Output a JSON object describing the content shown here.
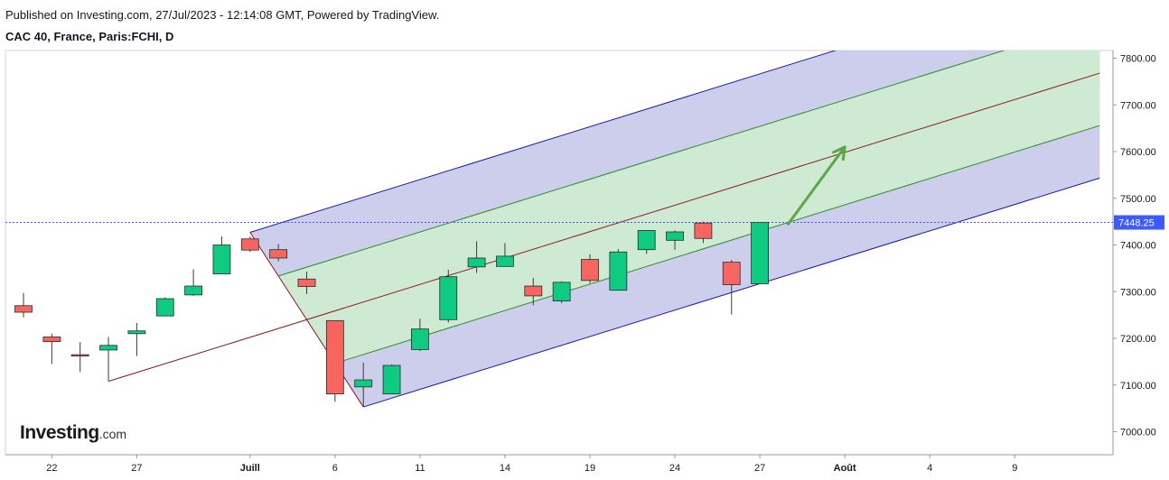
{
  "header": {
    "published": "Published on Investing.com, 27/Jul/2023 - 12:14:08 GMT, Powered by TradingView.",
    "symbol": "CAC 40, France, Paris:FCHI, D"
  },
  "logo": {
    "brand": "Investing",
    "suffix": ".com"
  },
  "colors": {
    "up": "#0ecb81",
    "down": "#f6655f",
    "outer_band": "#c7c9ea",
    "inner_band": "#cdebd2",
    "median_line": "#8b1a1a",
    "inner_line": "#2e8b2e",
    "outer_line": "#1a1aa0",
    "price_line": "#3d5afe",
    "arrow": "#5aa84a"
  },
  "chart_data": {
    "type": "candlestick",
    "ylim": [
      6970,
      7830
    ],
    "y_ticks": [
      "7000.00",
      "7100.00",
      "7200.00",
      "7300.00",
      "7400.00",
      "7500.00",
      "7600.00",
      "7700.00",
      "7800.00"
    ],
    "x_ticks": [
      "22",
      "27",
      "Juill",
      "6",
      "11",
      "14",
      "19",
      "24",
      "27",
      "Août",
      "4",
      "9"
    ],
    "last_price": "7448.25",
    "candles": [
      {
        "date": "21/06",
        "open": 7270,
        "high": 7297,
        "low": 7245,
        "close": 7256
      },
      {
        "date": "22/06",
        "open": 7203,
        "high": 7210,
        "low": 7145,
        "close": 7193
      },
      {
        "date": "23/06",
        "open": 7165,
        "high": 7192,
        "low": 7128,
        "close": 7163
      },
      {
        "date": "26/06",
        "open": 7175,
        "high": 7203,
        "low": 7108,
        "close": 7185
      },
      {
        "date": "27/06",
        "open": 7210,
        "high": 7233,
        "low": 7162,
        "close": 7216
      },
      {
        "date": "28/06",
        "open": 7248,
        "high": 7288,
        "low": 7248,
        "close": 7285
      },
      {
        "date": "29/06",
        "open": 7293,
        "high": 7348,
        "low": 7291,
        "close": 7312
      },
      {
        "date": "30/06",
        "open": 7338,
        "high": 7418,
        "low": 7338,
        "close": 7400
      },
      {
        "date": "03/07",
        "open": 7413,
        "high": 7418,
        "low": 7385,
        "close": 7389
      },
      {
        "date": "04/07",
        "open": 7390,
        "high": 7402,
        "low": 7365,
        "close": 7372
      },
      {
        "date": "05/07",
        "open": 7327,
        "high": 7343,
        "low": 7295,
        "close": 7311
      },
      {
        "date": "06/07",
        "open": 7238,
        "high": 7238,
        "low": 7064,
        "close": 7081
      },
      {
        "date": "07/07",
        "open": 7096,
        "high": 7148,
        "low": 7053,
        "close": 7111
      },
      {
        "date": "10/07",
        "open": 7081,
        "high": 7144,
        "low": 7081,
        "close": 7142
      },
      {
        "date": "11/07",
        "open": 7176,
        "high": 7242,
        "low": 7173,
        "close": 7220
      },
      {
        "date": "12/07",
        "open": 7240,
        "high": 7347,
        "low": 7234,
        "close": 7332
      },
      {
        "date": "13/07",
        "open": 7353,
        "high": 7408,
        "low": 7340,
        "close": 7372
      },
      {
        "date": "14/07",
        "open": 7354,
        "high": 7404,
        "low": 7353,
        "close": 7376
      },
      {
        "date": "17/07",
        "open": 7312,
        "high": 7329,
        "low": 7271,
        "close": 7291
      },
      {
        "date": "18/07",
        "open": 7280,
        "high": 7322,
        "low": 7275,
        "close": 7320
      },
      {
        "date": "19/07",
        "open": 7369,
        "high": 7380,
        "low": 7318,
        "close": 7324
      },
      {
        "date": "20/07",
        "open": 7303,
        "high": 7391,
        "low": 7303,
        "close": 7385
      },
      {
        "date": "21/07",
        "open": 7390,
        "high": 7432,
        "low": 7381,
        "close": 7431
      },
      {
        "date": "24/07",
        "open": 7410,
        "high": 7431,
        "low": 7390,
        "close": 7428
      },
      {
        "date": "25/07",
        "open": 7447,
        "high": 7450,
        "low": 7404,
        "close": 7414
      },
      {
        "date": "26/07",
        "open": 7363,
        "high": 7368,
        "low": 7251,
        "close": 7315
      },
      {
        "date": "27/07",
        "open": 7317,
        "high": 7448,
        "low": 7317,
        "close": 7448
      }
    ],
    "pitchfork": {
      "pivot": {
        "date": "26/06",
        "value": 7108
      },
      "a": {
        "date": "03/07",
        "value": 7427
      },
      "b": {
        "date": "07/07",
        "value": 7053
      },
      "inner_fraction": 0.5,
      "outer_fraction": 1.0,
      "extend_to": "14/08"
    },
    "projection_arrow": {
      "from": {
        "date": "28/07",
        "value": 7445
      },
      "to": {
        "date": "01/08",
        "value": 7610
      }
    }
  }
}
